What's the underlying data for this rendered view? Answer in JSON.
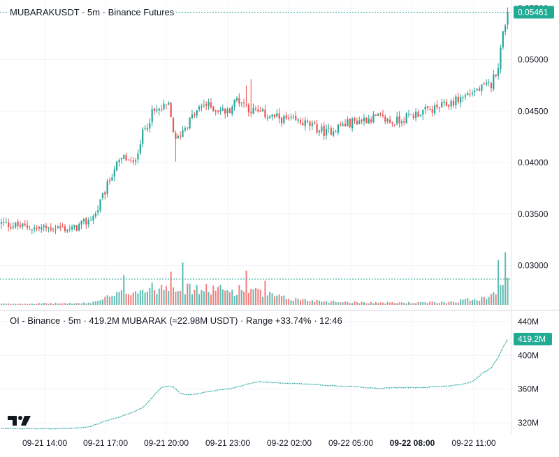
{
  "colors": {
    "up": "#26a69a",
    "down": "#ef5350",
    "accent": "#22ab94",
    "grid": "#f0f3fa",
    "text": "#131722",
    "oi_line": "#26a69a"
  },
  "top_pane": {
    "title": "MUBARAKUSDT · 5m · Binance Futures",
    "y_labels": [
      "0.05500",
      "0.05000",
      "0.04500",
      "0.04000",
      "0.03500",
      "0.03000"
    ],
    "last_price_label": "0.05461"
  },
  "bottom_pane": {
    "title": "OI - Binance · 5m · 419.2M MUBARAK (≈22.98M USDT) · Range +33.74% · 12:46",
    "y_labels": [
      "440M",
      "400M",
      "360M",
      "320M"
    ],
    "last_value_label": "419.2M"
  },
  "x_axis": {
    "labels": [
      "09-21 14:00",
      "09-21 17:00",
      "09-21 20:00",
      "09-21 23:00",
      "09-22 02:00",
      "09-22 05:00",
      "09-22 08:00",
      "09-22 11:00"
    ],
    "bold_index": 6
  },
  "logo_icon": "tradingview-logo-icon",
  "chart_data": [
    {
      "type": "candlestick",
      "title": "MUBARAKUSDT · 5m · Binance Futures",
      "interval": "5m",
      "ylim": [
        0.0257,
        0.0558
      ],
      "last_price": 0.05461,
      "grid": true,
      "anchors_close": [
        [
          0,
          0.0341
        ],
        [
          8,
          0.0338
        ],
        [
          16,
          0.0336
        ],
        [
          24,
          0.0337
        ],
        [
          30,
          0.0335
        ],
        [
          36,
          0.0342
        ],
        [
          40,
          0.035
        ],
        [
          44,
          0.0372
        ],
        [
          48,
          0.0395
        ],
        [
          52,
          0.0405
        ],
        [
          56,
          0.0398
        ],
        [
          60,
          0.0428
        ],
        [
          64,
          0.0448
        ],
        [
          68,
          0.0452
        ],
        [
          71,
          0.0455
        ],
        [
          74,
          0.042
        ],
        [
          77,
          0.0432
        ],
        [
          82,
          0.0447
        ],
        [
          86,
          0.0457
        ],
        [
          90,
          0.0453
        ],
        [
          96,
          0.0449
        ],
        [
          100,
          0.0462
        ],
        [
          103,
          0.0458
        ],
        [
          106,
          0.0451
        ],
        [
          110,
          0.0448
        ],
        [
          116,
          0.0444
        ],
        [
          122,
          0.0441
        ],
        [
          128,
          0.0439
        ],
        [
          134,
          0.0433
        ],
        [
          138,
          0.0429
        ],
        [
          144,
          0.0436
        ],
        [
          150,
          0.044
        ],
        [
          156,
          0.0443
        ],
        [
          160,
          0.0444
        ],
        [
          166,
          0.0439
        ],
        [
          172,
          0.0444
        ],
        [
          178,
          0.0449
        ],
        [
          184,
          0.0452
        ],
        [
          190,
          0.0457
        ],
        [
          196,
          0.0464
        ],
        [
          200,
          0.0469
        ],
        [
          204,
          0.0472
        ],
        [
          208,
          0.0476
        ],
        [
          211,
          0.0495
        ],
        [
          213,
          0.0525
        ],
        [
          215,
          0.05461
        ]
      ],
      "spikes": [
        {
          "i": 72,
          "high": 0.0459
        },
        {
          "i": 74,
          "low": 0.0401
        },
        {
          "i": 106,
          "high": 0.0481
        },
        {
          "i": 104,
          "high": 0.0475
        }
      ],
      "volume": {
        "ylim": [
          0,
          100
        ],
        "anchors": [
          [
            0,
            2
          ],
          [
            36,
            3
          ],
          [
            40,
            6
          ],
          [
            44,
            12
          ],
          [
            48,
            15
          ],
          [
            52,
            22
          ],
          [
            56,
            25
          ],
          [
            60,
            26
          ],
          [
            64,
            28
          ],
          [
            68,
            32
          ],
          [
            72,
            38
          ],
          [
            74,
            36
          ],
          [
            78,
            28
          ],
          [
            86,
            26
          ],
          [
            90,
            28
          ],
          [
            96,
            24
          ],
          [
            104,
            28
          ],
          [
            110,
            20
          ],
          [
            120,
            12
          ],
          [
            130,
            8
          ],
          [
            140,
            6
          ],
          [
            150,
            5
          ],
          [
            160,
            4
          ],
          [
            170,
            4
          ],
          [
            180,
            4
          ],
          [
            190,
            5
          ],
          [
            200,
            10
          ],
          [
            206,
            14
          ],
          [
            210,
            28
          ],
          [
            212,
            42
          ],
          [
            215,
            50
          ]
        ],
        "spikes": [
          {
            "i": 52,
            "v": 52
          },
          {
            "i": 72,
            "v": 58
          },
          {
            "i": 77,
            "v": 74
          },
          {
            "i": 104,
            "v": 60
          },
          {
            "i": 112,
            "v": 42
          },
          {
            "i": 211,
            "v": 78
          },
          {
            "i": 214,
            "v": 92
          }
        ]
      }
    },
    {
      "type": "line",
      "title": "OI - Binance · 5m · 419.2M MUBARAK (≈22.98M USDT) · Range +33.74% · 12:46",
      "ylim": [
        307,
        453
      ],
      "last_value": 419.2,
      "y_ticks": [
        440,
        400,
        360,
        320
      ],
      "anchors": [
        [
          0,
          313.5
        ],
        [
          20,
          313.2
        ],
        [
          32,
          313.8
        ],
        [
          38,
          316
        ],
        [
          44,
          322
        ],
        [
          50,
          327
        ],
        [
          56,
          333
        ],
        [
          60,
          338
        ],
        [
          64,
          350
        ],
        [
          68,
          362
        ],
        [
          71,
          364
        ],
        [
          73,
          363
        ],
        [
          76,
          355
        ],
        [
          80,
          353
        ],
        [
          86,
          356
        ],
        [
          92,
          359
        ],
        [
          98,
          361
        ],
        [
          102,
          364
        ],
        [
          106,
          367
        ],
        [
          110,
          369
        ],
        [
          114,
          368
        ],
        [
          120,
          367
        ],
        [
          130,
          366
        ],
        [
          140,
          364
        ],
        [
          150,
          363
        ],
        [
          160,
          361
        ],
        [
          170,
          362
        ],
        [
          180,
          362
        ],
        [
          190,
          364
        ],
        [
          196,
          366
        ],
        [
          200,
          369
        ],
        [
          204,
          378
        ],
        [
          208,
          385
        ],
        [
          211,
          398
        ],
        [
          213,
          409
        ],
        [
          215,
          419.2
        ]
      ]
    }
  ]
}
